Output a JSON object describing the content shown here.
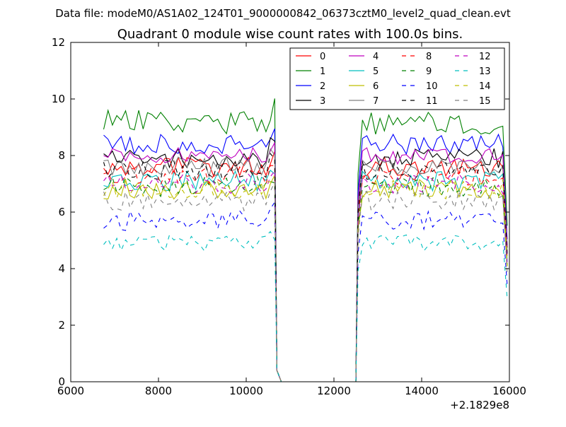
{
  "figure": {
    "suptitle": "Data file: modeM0/AS1A02_124T01_9000000842_06373cztM0_level2_quad_clean.evt",
    "x_offset_label": "+2.1829e8"
  },
  "chart_data": {
    "type": "line",
    "title": "Quadrant 0 module wise count rates with 100.0s bins.",
    "xlabel": "",
    "ylabel": "",
    "xlim": [
      6000,
      16000
    ],
    "ylim": [
      0,
      12
    ],
    "x_offset": 218290000,
    "xticks": [
      6000,
      8000,
      10000,
      12000,
      14000,
      16000
    ],
    "yticks": [
      0,
      2,
      4,
      6,
      8,
      10,
      12
    ],
    "grid": false,
    "legend": {
      "placement": "top-right",
      "columns": 4
    },
    "segments": [
      {
        "x_start": 6750,
        "x_end": 10750,
        "step": 100
      },
      {
        "x_start": 12550,
        "x_end": 15950,
        "step": 100
      }
    ],
    "gap": {
      "x_start": 10800,
      "x_end": 12500,
      "value": 0
    },
    "series": [
      {
        "name": "0",
        "color": "#ff0000",
        "dash": "solid",
        "base": 7.6,
        "amp": 0.35,
        "seed": 1
      },
      {
        "name": "1",
        "color": "#008000",
        "dash": "solid",
        "base": 9.2,
        "amp": 0.45,
        "seed": 2
      },
      {
        "name": "2",
        "color": "#0000ff",
        "dash": "solid",
        "base": 8.4,
        "amp": 0.35,
        "seed": 3
      },
      {
        "name": "3",
        "color": "#000000",
        "dash": "solid",
        "base": 7.9,
        "amp": 0.35,
        "seed": 4
      },
      {
        "name": "4",
        "color": "#bf00bf",
        "dash": "solid",
        "base": 8.0,
        "amp": 0.3,
        "seed": 5
      },
      {
        "name": "5",
        "color": "#00bfbf",
        "dash": "solid",
        "base": 7.1,
        "amp": 0.35,
        "seed": 6
      },
      {
        "name": "6",
        "color": "#bfbf00",
        "dash": "solid",
        "base": 6.8,
        "amp": 0.35,
        "seed": 7
      },
      {
        "name": "7",
        "color": "#808080",
        "dash": "solid",
        "base": 7.6,
        "amp": 0.35,
        "seed": 8
      },
      {
        "name": "8",
        "color": "#ff0000",
        "dash": "dashed",
        "base": 7.3,
        "amp": 0.35,
        "seed": 9
      },
      {
        "name": "9",
        "color": "#008000",
        "dash": "dashed",
        "base": 6.9,
        "amp": 0.35,
        "seed": 10
      },
      {
        "name": "10",
        "color": "#0000ff",
        "dash": "dashed",
        "base": 5.7,
        "amp": 0.35,
        "seed": 11
      },
      {
        "name": "11",
        "color": "#000000",
        "dash": "dashed",
        "base": 7.5,
        "amp": 0.35,
        "seed": 12
      },
      {
        "name": "12",
        "color": "#bf00bf",
        "dash": "dashed",
        "base": 7.0,
        "amp": 0.35,
        "seed": 13
      },
      {
        "name": "13",
        "color": "#00bfbf",
        "dash": "dashed",
        "base": 4.9,
        "amp": 0.3,
        "seed": 14
      },
      {
        "name": "14",
        "color": "#bfbf00",
        "dash": "dashed",
        "base": 6.8,
        "amp": 0.35,
        "seed": 15
      },
      {
        "name": "15",
        "color": "#808080",
        "dash": "dashed",
        "base": 6.4,
        "amp": 0.35,
        "seed": 16
      }
    ]
  }
}
